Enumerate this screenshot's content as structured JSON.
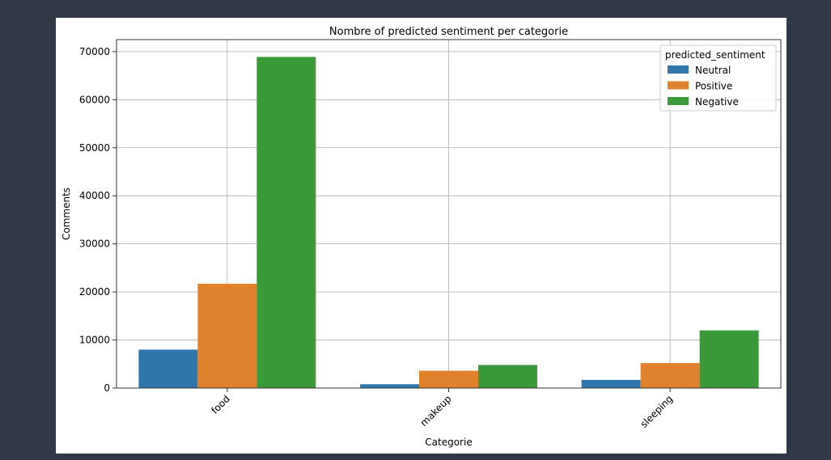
{
  "chart_data": {
    "type": "bar",
    "title": "Nombre of predicted sentiment per categorie",
    "xlabel": "Categorie",
    "ylabel": "Comments",
    "categories": [
      "food",
      "makeup",
      "sleeping"
    ],
    "series": [
      {
        "name": "Neutral",
        "color": "#2f76ad",
        "values": [
          8000,
          800,
          1700
        ]
      },
      {
        "name": "Positive",
        "color": "#e0812b",
        "values": [
          21700,
          3600,
          5200
        ]
      },
      {
        "name": "Negative",
        "color": "#3a9a3a",
        "values": [
          68900,
          4800,
          12000
        ]
      }
    ],
    "ylim": [
      0,
      72500
    ],
    "yticks": [
      0,
      10000,
      20000,
      30000,
      40000,
      50000,
      60000,
      70000
    ],
    "grid": true,
    "legend": {
      "title": "predicted_sentiment",
      "placement": "top-right"
    }
  }
}
